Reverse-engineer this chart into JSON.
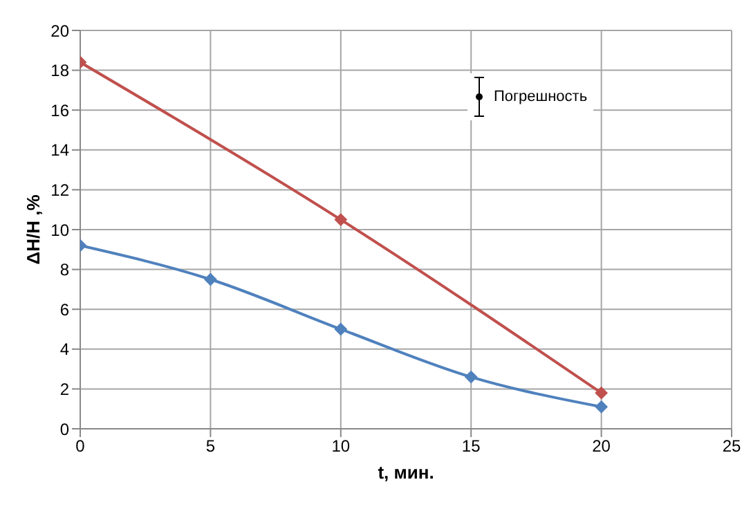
{
  "chart_data": {
    "type": "line",
    "xlabel": "t, мин.",
    "ylabel": "ΔH/H ,%",
    "xlim": [
      0,
      25
    ],
    "xticks": [
      0,
      5,
      10,
      15,
      20,
      25
    ],
    "ylim": [
      0,
      20
    ],
    "yticks": [
      0,
      2,
      4,
      6,
      8,
      10,
      12,
      14,
      16,
      18,
      20
    ],
    "grid": true,
    "marker": "diamond",
    "series": [
      {
        "color": "#4f81bd",
        "x": [
          0,
          5,
          10,
          15,
          20
        ],
        "values": [
          9.2,
          7.5,
          5,
          2.6,
          1.1
        ]
      },
      {
        "color": "#c0504d",
        "x": [
          0,
          10,
          20
        ],
        "values": [
          18.4,
          10.5,
          1.8
        ]
      }
    ],
    "annotations": [
      "Погрешность"
    ]
  }
}
